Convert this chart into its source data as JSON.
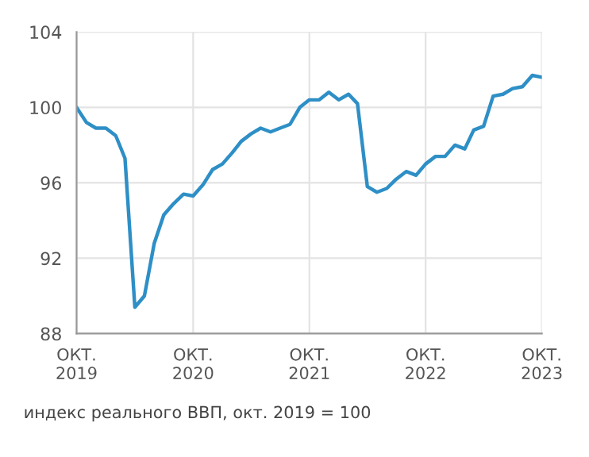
{
  "chart_data": {
    "type": "line",
    "x": [
      "2019-10",
      "2019-11",
      "2019-12",
      "2020-01",
      "2020-02",
      "2020-03",
      "2020-04",
      "2020-05",
      "2020-06",
      "2020-07",
      "2020-08",
      "2020-09",
      "2020-10",
      "2020-11",
      "2020-12",
      "2021-01",
      "2021-02",
      "2021-03",
      "2021-04",
      "2021-05",
      "2021-06",
      "2021-07",
      "2021-08",
      "2021-09",
      "2021-10",
      "2021-11",
      "2021-12",
      "2022-01",
      "2022-02",
      "2022-03",
      "2022-04",
      "2022-05",
      "2022-06",
      "2022-07",
      "2022-08",
      "2022-09",
      "2022-10",
      "2022-11",
      "2022-12",
      "2023-01",
      "2023-02",
      "2023-03",
      "2023-04",
      "2023-05",
      "2023-06",
      "2023-07",
      "2023-08",
      "2023-09",
      "2023-10"
    ],
    "series": [
      {
        "color": "#2e8fc6",
        "values": [
          100.0,
          99.2,
          98.9,
          98.9,
          98.5,
          97.3,
          89.4,
          90.0,
          92.8,
          94.3,
          94.9,
          95.4,
          95.3,
          95.9,
          96.7,
          97.0,
          97.6,
          98.2,
          98.6,
          98.9,
          98.7,
          98.9,
          99.1,
          100.0,
          100.4,
          100.4,
          100.8,
          100.4,
          100.7,
          100.2,
          95.8,
          95.5,
          95.7,
          96.2,
          96.6,
          96.4,
          97.0,
          97.4,
          97.4,
          98.0,
          97.8,
          98.8,
          99.0,
          100.6,
          100.7,
          101.0,
          101.1,
          101.7,
          101.6
        ]
      }
    ],
    "xlim": [
      "2019-10",
      "2023-10"
    ],
    "xticks": [
      {
        "value": "2019-10",
        "label": "ОКТ.\n2019"
      },
      {
        "value": "2020-10",
        "label": "ОКТ.\n2020"
      },
      {
        "value": "2021-10",
        "label": "ОКТ.\n2021"
      },
      {
        "value": "2022-10",
        "label": "ОКТ.\n2022"
      },
      {
        "value": "2023-10",
        "label": "ОКТ.\n2023"
      }
    ],
    "ylim": [
      88,
      104
    ],
    "yticks": [
      88,
      92,
      96,
      100,
      104
    ],
    "grid": true,
    "legend": false,
    "marker": "none",
    "line_style": "solid",
    "annotations": [
      "индекс реального ВВП, окт. 2019 = 100"
    ]
  }
}
